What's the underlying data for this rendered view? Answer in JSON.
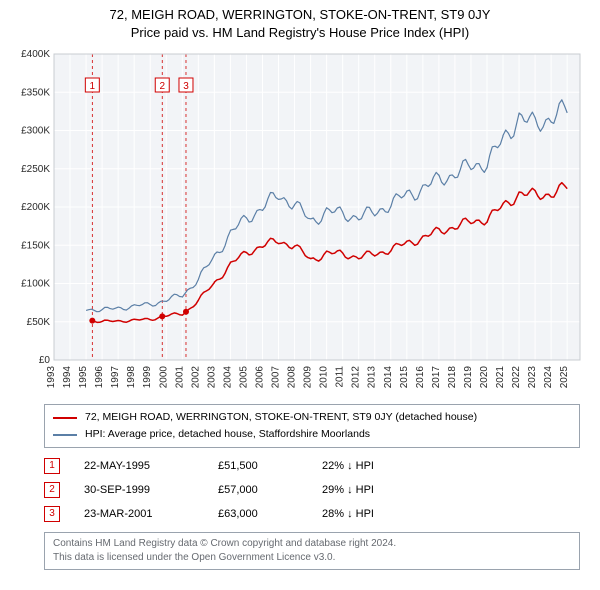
{
  "title": {
    "line1": "72, MEIGH ROAD, WERRINGTON, STOKE-ON-TRENT, ST9 0JY",
    "line2": "Price paid vs. HM Land Registry's House Price Index (HPI)"
  },
  "chart": {
    "type": "line",
    "background_color": "#ffffff",
    "plot_background_color": "#f2f4f7",
    "grid_color": "#ffffff",
    "axis_color": "#2a2a2a",
    "x": {
      "min": 1993,
      "max": 2025.8,
      "ticks": [
        1993,
        1994,
        1995,
        1996,
        1997,
        1998,
        1999,
        2000,
        2001,
        2002,
        2003,
        2004,
        2005,
        2006,
        2007,
        2008,
        2009,
        2010,
        2011,
        2012,
        2013,
        2014,
        2015,
        2016,
        2017,
        2018,
        2019,
        2020,
        2021,
        2022,
        2023,
        2024,
        2025
      ]
    },
    "y": {
      "min": 0,
      "max": 400000,
      "ticks": [
        0,
        50000,
        100000,
        150000,
        200000,
        250000,
        300000,
        350000,
        400000
      ],
      "tick_labels": [
        "£0",
        "£50K",
        "£100K",
        "£150K",
        "£200K",
        "£250K",
        "£300K",
        "£350K",
        "£400K"
      ]
    },
    "series": [
      {
        "name": "price_paid",
        "color": "#d00000",
        "width": 1.5,
        "points": [
          [
            1995.4,
            51500
          ],
          [
            1996,
            50000
          ],
          [
            1997,
            51000
          ],
          [
            1998,
            52000
          ],
          [
            1999,
            53000
          ],
          [
            1999.75,
            57000
          ],
          [
            2000,
            58000
          ],
          [
            2001,
            60000
          ],
          [
            2001.23,
            63000
          ],
          [
            2002,
            78000
          ],
          [
            2003,
            100000
          ],
          [
            2004,
            125000
          ],
          [
            2005,
            140000
          ],
          [
            2006,
            150000
          ],
          [
            2007,
            155000
          ],
          [
            2008,
            150000
          ],
          [
            2009,
            130000
          ],
          [
            2010,
            140000
          ],
          [
            2011,
            138000
          ],
          [
            2012,
            135000
          ],
          [
            2013,
            138000
          ],
          [
            2014,
            145000
          ],
          [
            2015,
            152000
          ],
          [
            2016,
            160000
          ],
          [
            2017,
            168000
          ],
          [
            2018,
            175000
          ],
          [
            2019,
            180000
          ],
          [
            2020,
            185000
          ],
          [
            2021,
            200000
          ],
          [
            2022,
            218000
          ],
          [
            2023,
            215000
          ],
          [
            2024,
            218000
          ],
          [
            2025,
            225000
          ]
        ]
      },
      {
        "name": "hpi",
        "color": "#5b7fa6",
        "width": 1.2,
        "points": [
          [
            1995.0,
            67000
          ],
          [
            1996,
            65000
          ],
          [
            1997,
            68000
          ],
          [
            1998,
            70000
          ],
          [
            1999,
            73000
          ],
          [
            2000,
            78000
          ],
          [
            2001,
            85000
          ],
          [
            2002,
            105000
          ],
          [
            2003,
            135000
          ],
          [
            2004,
            165000
          ],
          [
            2005,
            185000
          ],
          [
            2006,
            200000
          ],
          [
            2007,
            215000
          ],
          [
            2008,
            205000
          ],
          [
            2009,
            180000
          ],
          [
            2010,
            195000
          ],
          [
            2011,
            190000
          ],
          [
            2012,
            188000
          ],
          [
            2013,
            192000
          ],
          [
            2014,
            205000
          ],
          [
            2015,
            215000
          ],
          [
            2016,
            225000
          ],
          [
            2017,
            235000
          ],
          [
            2018,
            245000
          ],
          [
            2019,
            252000
          ],
          [
            2020,
            260000
          ],
          [
            2021,
            285000
          ],
          [
            2022,
            320000
          ],
          [
            2023,
            305000
          ],
          [
            2024,
            320000
          ],
          [
            2025,
            325000
          ]
        ]
      }
    ],
    "event_markers": [
      {
        "n": "1",
        "x": 1995.39
      },
      {
        "n": "2",
        "x": 1999.75
      },
      {
        "n": "3",
        "x": 2001.23
      }
    ],
    "event_line_color": "#d00000"
  },
  "legend": {
    "series1": "72, MEIGH ROAD, WERRINGTON, STOKE-ON-TRENT, ST9 0JY (detached house)",
    "series2": "HPI: Average price, detached house, Staffordshire Moorlands",
    "color1": "#d00000",
    "color2": "#5b7fa6"
  },
  "events": [
    {
      "n": "1",
      "date": "22-MAY-1995",
      "price": "£51,500",
      "delta": "22% ↓ HPI"
    },
    {
      "n": "2",
      "date": "30-SEP-1999",
      "price": "£57,000",
      "delta": "29% ↓ HPI"
    },
    {
      "n": "3",
      "date": "23-MAR-2001",
      "price": "£63,000",
      "delta": "28% ↓ HPI"
    }
  ],
  "footer": {
    "line1": "Contains HM Land Registry data © Crown copyright and database right 2024.",
    "line2": "This data is licensed under the Open Government Licence v3.0."
  }
}
